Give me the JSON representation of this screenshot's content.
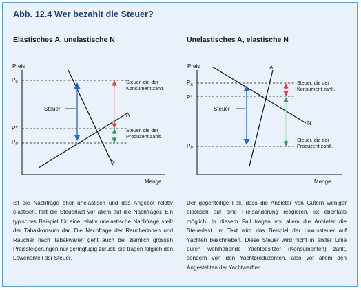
{
  "figure": {
    "title": "Abb. 12.4  Wer bezahlt die Steuer?"
  },
  "left": {
    "title": "Elastisches A, unelastische N",
    "y_axis_label": "Preis",
    "x_axis_label": "Menge",
    "price_labels": [
      "P",
      "P*",
      "P"
    ],
    "price_subscripts": [
      "K",
      "",
      "P"
    ],
    "supply_label": "A",
    "demand_label": "N",
    "tax_label": "Steuer",
    "consumer_note": [
      "Steuer, die der",
      "Konsument zahlt."
    ],
    "producer_note": [
      "Steuer, die der",
      "Produzent zahlt."
    ],
    "text": "Ist die Nachfrage eher unelastisch und das Angebot relativ elastisch, fällt die Steuerlast vor allem auf die Nachfrager. Ein typisches Beispiel für eine relativ unelastische Nachfrage stellt der Tabakkonsum dar. Die Nachfrage der Raucherinnen und Raucher nach Tabakwaren geht auch bei ziemlich grossen Preissteigerungen nur geringfügig zurück; sie tragen folglich den Löwenanteil der Steuer."
  },
  "right": {
    "title": "Unelastisches A, elastische N",
    "y_axis_label": "Preis",
    "x_axis_label": "Menge",
    "price_labels": [
      "P",
      "P*",
      "P"
    ],
    "price_subscripts": [
      "K",
      "",
      "P"
    ],
    "supply_label": "A",
    "demand_label": "N",
    "tax_label": "Steuer",
    "consumer_note": [
      "Steuer, die der",
      "Konsument zahlt."
    ],
    "producer_note": [
      "Steuer, die der",
      "Produzent zahlt."
    ],
    "text": "Der gegenteilige Fall, dass die Anbieter von Gütern weniger elastisch auf eine Preisänderung reagieren, ist ebenfalls möglich. In diesem Fall tragen vor allem die Anbieter die Steuerlast. Im Text wird das Beispiel der Luxussteuer auf Yachten beschrieben. Diese Steuer wird nicht in erster Linie durch wohlhabende Yachtbesitzer (Konsumenten) zahlt, sondern von den Yachtproduzenten, also vor allem den Angestellten der Yachtwerften."
  },
  "colors": {
    "frame_border": "#5aa0d8",
    "background": "#e9f1fb",
    "title": "#1b3f6f",
    "tax_arrow": "#2a62c4",
    "consumer_arrow": "#e23b3b",
    "producer_arrow": "#2fa043"
  }
}
